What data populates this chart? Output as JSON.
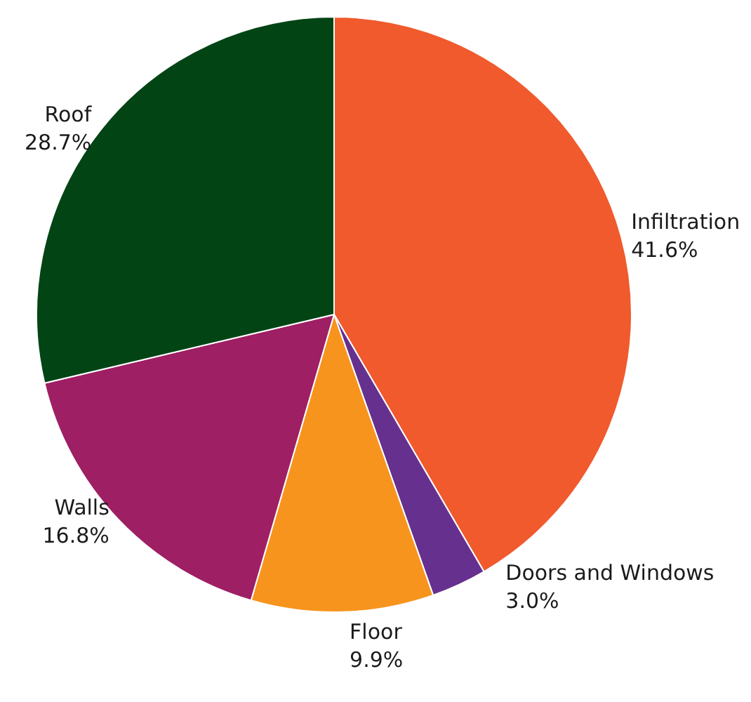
{
  "chart_data": {
    "type": "pie",
    "categories": [
      "Infiltration",
      "Doors and Windows",
      "Floor",
      "Walls",
      "Roof"
    ],
    "values": [
      41.6,
      3.0,
      9.9,
      16.8,
      28.7
    ],
    "value_labels": [
      "41.6%",
      "3.0%",
      "9.9%",
      "16.8%",
      "28.7%"
    ],
    "colors": [
      "#f05a2c",
      "#66308f",
      "#f7941d",
      "#9e1f63",
      "#034415"
    ],
    "legend": false
  }
}
